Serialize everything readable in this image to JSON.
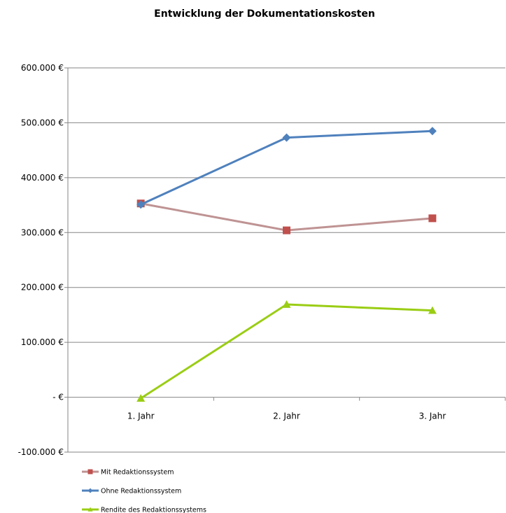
{
  "chart_data": {
    "type": "line",
    "title": "Entwicklung der Dokumentationskosten",
    "xlabel": "",
    "ylabel": "",
    "categories": [
      "1. Jahr",
      "2. Jahr",
      "3. Jahr"
    ],
    "ylim": [
      -100000,
      600000
    ],
    "yticks": [
      600000,
      500000,
      400000,
      300000,
      200000,
      100000,
      0,
      -100000
    ],
    "ytick_labels": [
      "600.000 €",
      "500.000 €",
      "400.000 €",
      "300.000 €",
      "200.000 €",
      "100.000 €",
      "-   €",
      "-100.000 €"
    ],
    "grid": true,
    "legend_position": "bottom-left",
    "series": [
      {
        "name": "Mit Redaktionssystem",
        "values": [
          353000,
          304000,
          326000
        ],
        "color": "#bf9393",
        "marker_color": "#c0504d",
        "marker": "square"
      },
      {
        "name": "Ohne Redaktionssystem",
        "values": [
          351000,
          473000,
          485000
        ],
        "color": "#4f81bd",
        "marker_color": "#4f81bd",
        "marker": "diamond"
      },
      {
        "name": "Rendite des Redaktionssystems",
        "values": [
          -2000,
          169000,
          158000
        ],
        "color": "#9acd14",
        "marker_color": "#9acd14",
        "marker": "triangle"
      }
    ]
  }
}
